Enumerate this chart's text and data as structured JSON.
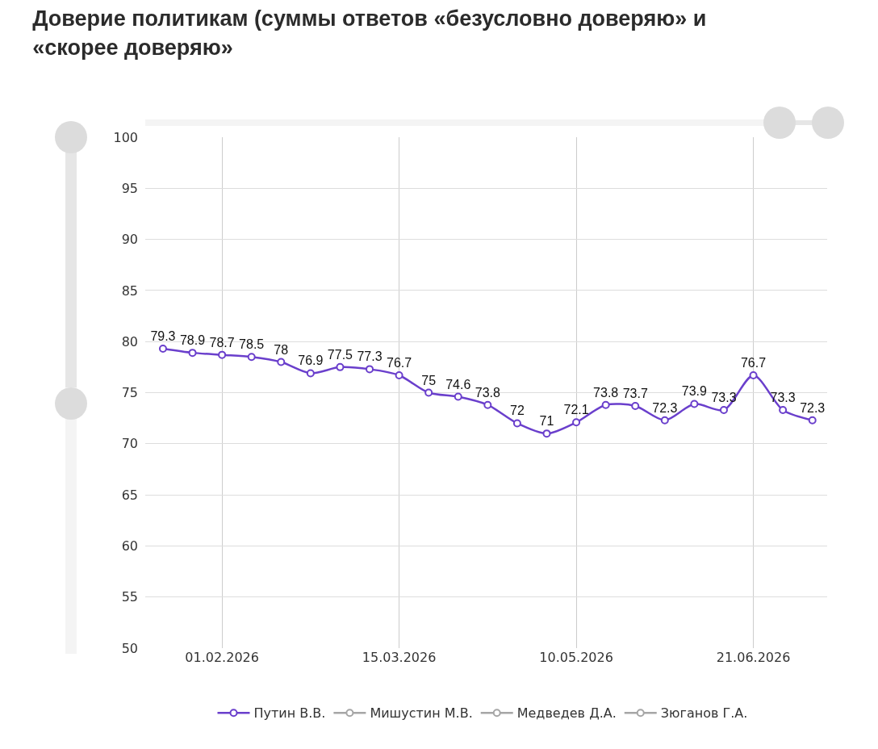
{
  "chart_data": {
    "type": "line",
    "title": "Доверие политикам (суммы ответов «безусловно доверяю» и «скорее доверяю»",
    "categories": [
      null,
      null,
      "01.02.2026",
      null,
      null,
      null,
      null,
      null,
      "15.03.2026",
      null,
      null,
      null,
      null,
      null,
      "10.05.2026",
      null,
      null,
      null,
      null,
      null,
      "21.06.2026",
      null,
      null
    ],
    "series": [
      {
        "name": "Путин В.В.",
        "color": "#6a3fcc",
        "values": [
          79.3,
          78.9,
          78.7,
          78.5,
          78,
          76.9,
          77.5,
          77.3,
          76.7,
          75,
          74.6,
          73.8,
          72,
          71,
          72.1,
          73.8,
          73.7,
          72.3,
          73.9,
          73.3,
          76.7,
          73.3,
          72.3
        ]
      },
      {
        "name": "Мишустин М.В.",
        "color": "#a6a6a6",
        "values": [
          null,
          null,
          null,
          null,
          null,
          null,
          null,
          null,
          null,
          null,
          null,
          null,
          null,
          null,
          null,
          null,
          null,
          null,
          null,
          null,
          null,
          null,
          null
        ]
      },
      {
        "name": "Медведев Д.А.",
        "color": "#a6a6a6",
        "values": [
          null,
          null,
          null,
          null,
          null,
          null,
          null,
          null,
          null,
          null,
          null,
          null,
          null,
          null,
          null,
          null,
          null,
          null,
          null,
          null,
          null,
          null,
          null
        ]
      },
      {
        "name": "Зюганов Г.А.",
        "color": "#a6a6a6",
        "values": [
          null,
          null,
          null,
          null,
          null,
          null,
          null,
          null,
          null,
          null,
          null,
          null,
          null,
          null,
          null,
          null,
          null,
          null,
          null,
          null,
          null,
          null,
          null
        ]
      }
    ],
    "ylim": [
      50,
      100
    ],
    "yticks": [
      50,
      55,
      60,
      65,
      70,
      75,
      80,
      85,
      90,
      95,
      100
    ],
    "grid": true,
    "legend": "bottom",
    "marker": "circle",
    "line_style": "solid",
    "data_labels": true
  }
}
